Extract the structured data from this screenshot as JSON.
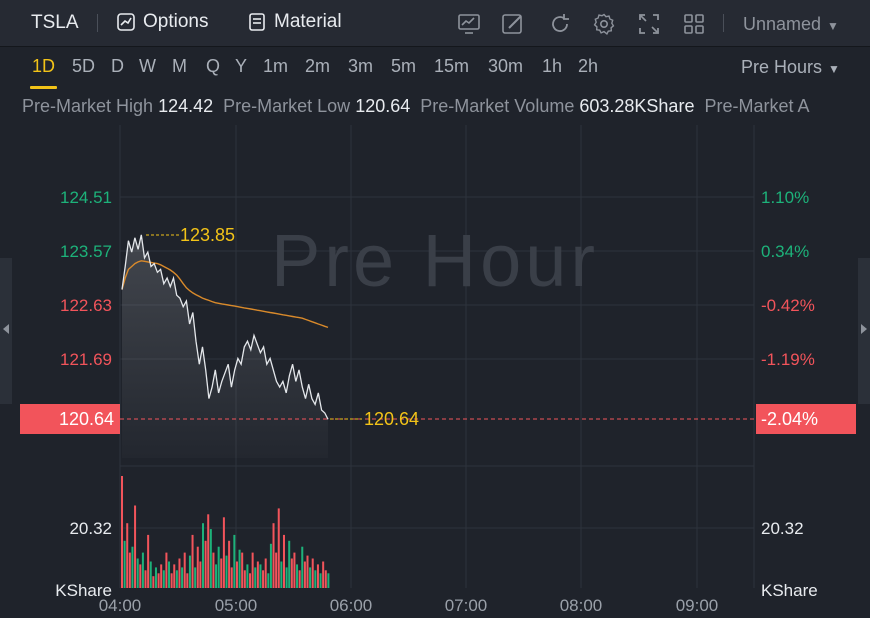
{
  "header": {
    "symbol": "TSLA",
    "options_label": "Options",
    "material_label": "Material",
    "layout_name": "Unnamed",
    "tools": [
      "chart-settings-icon",
      "draw-pencil-icon",
      "refresh-icon",
      "gear-icon",
      "fullscreen-icon",
      "grid-layout-icon"
    ]
  },
  "timeframes": {
    "items": [
      "1D",
      "5D",
      "D",
      "W",
      "M",
      "Q",
      "Y",
      "1m",
      "2m",
      "3m",
      "5m",
      "15m",
      "30m",
      "1h",
      "2h"
    ],
    "active": "1D",
    "session_label": "Pre Hours"
  },
  "stats": [
    {
      "label": "Pre-Market High",
      "value": "124.42"
    },
    {
      "label": "Pre-Market Low",
      "value": "120.64"
    },
    {
      "label": "Pre-Market Volume",
      "value": "603.28KShare"
    },
    {
      "label": "Pre-Market A",
      "value": ""
    }
  ],
  "colors": {
    "up": "#1db27a",
    "down": "#f2545b",
    "highlight": "#f2c318",
    "avg_line": "#d98a2b",
    "price_line": "#e4e7eb"
  },
  "chart_data": {
    "type": "line",
    "watermark": "Pre Hour",
    "price_ticks": [
      "124.51",
      "123.57",
      "122.63",
      "121.69"
    ],
    "percent_ticks": [
      "1.10%",
      "0.34%",
      "-0.42%",
      "-1.19%"
    ],
    "current_price": "120.64",
    "current_percent": "-2.04%",
    "high_label": "123.85",
    "time_labels": [
      "04:00",
      "05:00",
      "06:00",
      "07:00",
      "08:00",
      "09:00"
    ],
    "volume_tick": "20.32",
    "volume_unit": "KShare",
    "price_range": [
      120.2,
      125.1
    ],
    "price": [
      122.9,
      123.3,
      123.75,
      123.55,
      123.8,
      123.6,
      123.85,
      123.45,
      123.55,
      123.3,
      123.35,
      123.2,
      123.25,
      123.0,
      123.1,
      122.95,
      123.1,
      122.8,
      122.75,
      122.6,
      122.7,
      122.3,
      122.5,
      122.0,
      121.6,
      121.9,
      121.5,
      121.0,
      121.2,
      121.5,
      121.1,
      121.3,
      121.45,
      121.6,
      121.2,
      121.5,
      121.7,
      121.6,
      121.9,
      122.0,
      121.85,
      122.1,
      121.95,
      121.8,
      121.9,
      121.6,
      121.7,
      121.5,
      121.3,
      121.2,
      121.3,
      121.1,
      121.4,
      121.6,
      121.3,
      121.5,
      121.2,
      121.0,
      121.25,
      121.0,
      120.9,
      121.1,
      120.8,
      120.75,
      120.64
    ],
    "avg": [
      122.9,
      123.1,
      123.25,
      123.3,
      123.35,
      123.38,
      123.4,
      123.39,
      123.38,
      123.37,
      123.36,
      123.35,
      123.33,
      123.3,
      123.27,
      123.24,
      123.2,
      123.15,
      123.08,
      123.0,
      122.93,
      122.88,
      122.84,
      122.81,
      122.78,
      122.75,
      122.73,
      122.71,
      122.69,
      122.67,
      122.66,
      122.65,
      122.64,
      122.63,
      122.62,
      122.61,
      122.6,
      122.59,
      122.58,
      122.57,
      122.56,
      122.55,
      122.54,
      122.53,
      122.52,
      122.51,
      122.5,
      122.49,
      122.48,
      122.47,
      122.46,
      122.45,
      122.44,
      122.43,
      122.42,
      122.41,
      122.4,
      122.38,
      122.36,
      122.34,
      122.32,
      122.3,
      122.28,
      122.26,
      122.24
    ],
    "volume_range": [
      0,
      38
    ],
    "volume": [
      38,
      16,
      22,
      12,
      14,
      28,
      10,
      8,
      12,
      6,
      18,
      9,
      4,
      7,
      5,
      8,
      6,
      12,
      9,
      5,
      8,
      6,
      10,
      7,
      12,
      5,
      11,
      18,
      7,
      14,
      9,
      22,
      16,
      25,
      20,
      12,
      8,
      14,
      10,
      24,
      11,
      16,
      7,
      18,
      9,
      13,
      12,
      6,
      8,
      5,
      12,
      7,
      9,
      8,
      6,
      10,
      5,
      15,
      22,
      12,
      27,
      9,
      18,
      7,
      16,
      10,
      12,
      8,
      6,
      14,
      9,
      11,
      7,
      10,
      6,
      8,
      5,
      9,
      6,
      5
    ],
    "volume_up": [
      false,
      true,
      false,
      false,
      true,
      false,
      true,
      false,
      true,
      false,
      false,
      true,
      false,
      true,
      false,
      false,
      true,
      false,
      true,
      false,
      false,
      true,
      false,
      true,
      false,
      false,
      true,
      false,
      true,
      false,
      false,
      true,
      false,
      false,
      true,
      false,
      true,
      true,
      false,
      false,
      true,
      false,
      false,
      true,
      false,
      true,
      false,
      false,
      true,
      false,
      false,
      true,
      false,
      true,
      false,
      false,
      true,
      true,
      false,
      false,
      false,
      true,
      false,
      true,
      true,
      false,
      false,
      true,
      false,
      true,
      false,
      false,
      true,
      false,
      true,
      false,
      true,
      false,
      false,
      true
    ]
  }
}
